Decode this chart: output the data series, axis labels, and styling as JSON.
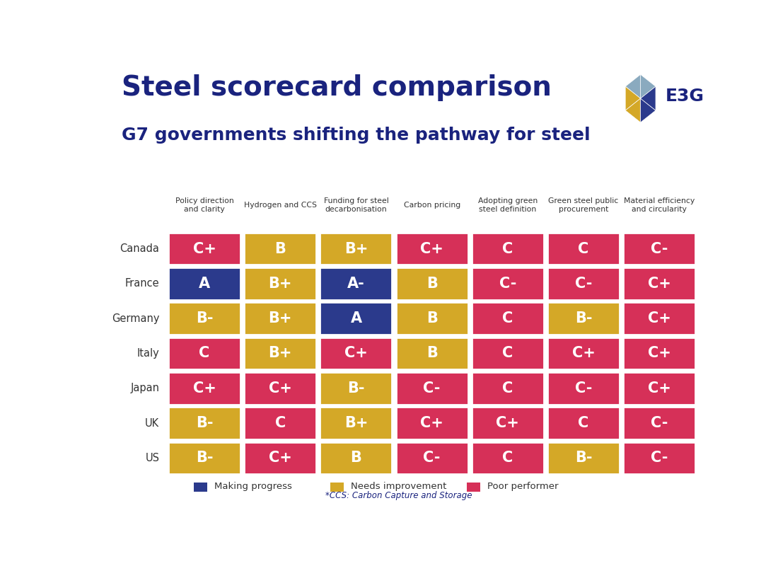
{
  "title": "Steel scorecard comparison",
  "subtitle": "G7 governments shifting the pathway for steel",
  "rows": [
    "Canada",
    "France",
    "Germany",
    "Italy",
    "Japan",
    "UK",
    "US"
  ],
  "columns": [
    "Policy direction\nand clarity",
    "Hydrogen and CCS",
    "Funding for steel\ndecarbonisation",
    "Carbon pricing",
    "Adopting green\nsteel definition",
    "Green steel public\nprocurement",
    "Material efficiency\nand circularity"
  ],
  "grades": [
    [
      "C+",
      "B",
      "B+",
      "C+",
      "C",
      "C",
      "C-"
    ],
    [
      "A",
      "B+",
      "A-",
      "B",
      "C-",
      "C-",
      "C+"
    ],
    [
      "B-",
      "B+",
      "A",
      "B",
      "C",
      "B-",
      "C+"
    ],
    [
      "C",
      "B+",
      "C+",
      "B",
      "C",
      "C+",
      "C+"
    ],
    [
      "C+",
      "C+",
      "B-",
      "C-",
      "C",
      "C-",
      "C+"
    ],
    [
      "B-",
      "C",
      "B+",
      "C+",
      "C+",
      "C",
      "C-"
    ],
    [
      "B-",
      "C+",
      "B",
      "C-",
      "C",
      "B-",
      "C-"
    ]
  ],
  "colors": [
    [
      "poor",
      "needs",
      "needs",
      "poor",
      "poor",
      "poor",
      "poor"
    ],
    [
      "progress",
      "needs",
      "progress",
      "needs",
      "poor",
      "poor",
      "poor"
    ],
    [
      "needs",
      "needs",
      "progress",
      "needs",
      "poor",
      "needs",
      "poor"
    ],
    [
      "poor",
      "needs",
      "poor",
      "needs",
      "poor",
      "poor",
      "poor"
    ],
    [
      "poor",
      "poor",
      "needs",
      "poor",
      "poor",
      "poor",
      "poor"
    ],
    [
      "needs",
      "poor",
      "needs",
      "poor",
      "poor",
      "poor",
      "poor"
    ],
    [
      "needs",
      "poor",
      "needs",
      "poor",
      "poor",
      "needs",
      "poor"
    ]
  ],
  "color_map": {
    "progress": "#2B3A8C",
    "needs": "#D4A827",
    "poor": "#D63058"
  },
  "legend": [
    {
      "label": "Making progress",
      "color": "#2B3A8C"
    },
    {
      "label": "Needs improvement",
      "color": "#D4A827"
    },
    {
      "label": "Poor performer",
      "color": "#D63058"
    }
  ],
  "footnote": "*CCS: Carbon Capture and Storage",
  "title_color": "#1a237e",
  "subtitle_color": "#1a237e",
  "text_color": "#ffffff",
  "row_label_color": "#333333",
  "col_label_color": "#333333",
  "background_color": "#ffffff",
  "logo_colors_top": [
    "#8aaabf",
    "#2B3A8C",
    "#8aaabf"
  ],
  "logo_colors_mid": [
    "#2B3A8C",
    "#D4A827",
    "#8aaabf",
    "#D4A827"
  ],
  "logo_colors_bot": [
    "#8aaabf",
    "#2B3A8C",
    "#8aaabf"
  ]
}
